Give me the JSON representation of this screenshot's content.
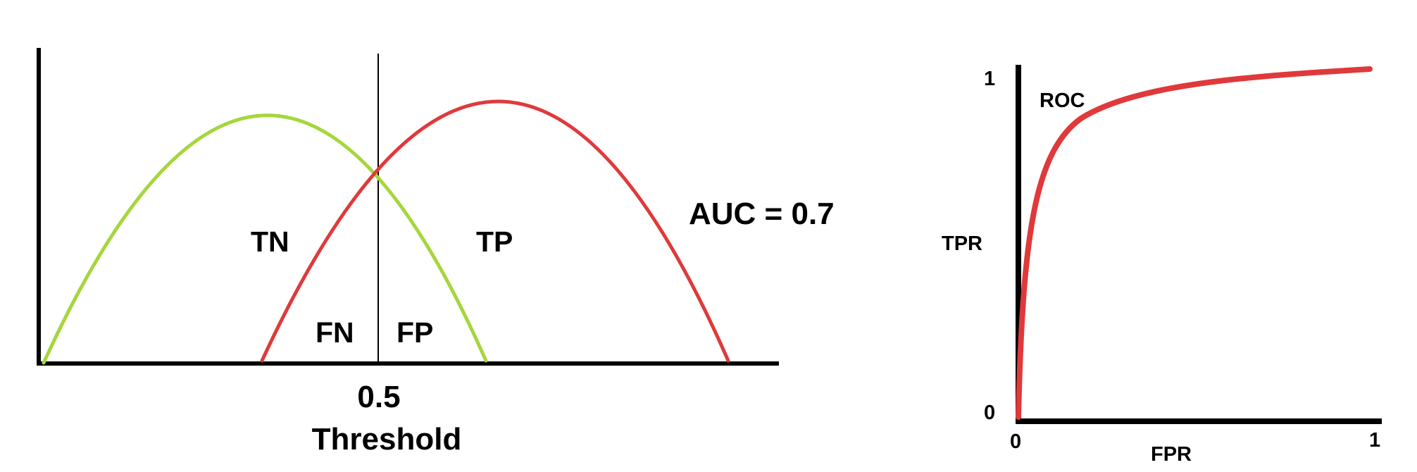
{
  "left_diagram": {
    "threshold_value": "0.5",
    "threshold_label": "Threshold",
    "region_labels": {
      "tn": "TN",
      "tp": "TP",
      "fn": "FN",
      "fp": "FP"
    },
    "auc_label": "AUC = 0.7",
    "negative_curve_color": "#a6d63c",
    "positive_curve_color": "#e0393b"
  },
  "roc_chart": {
    "curve_label": "ROC",
    "y_axis_label": "TPR",
    "x_axis_label": "FPR",
    "y_ticks": [
      "0",
      "1"
    ],
    "x_ticks": [
      "0",
      "1"
    ],
    "curve_color": "#e0393b"
  }
}
